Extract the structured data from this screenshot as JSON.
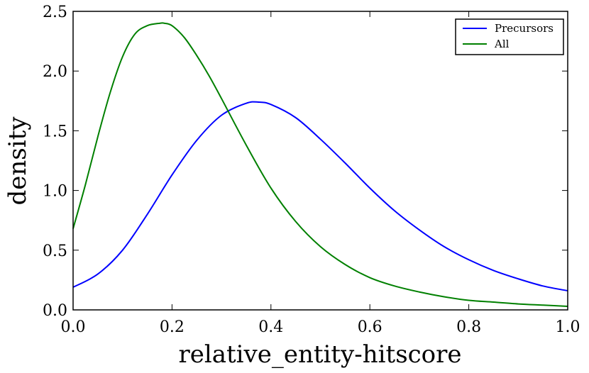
{
  "chart_data": {
    "type": "line",
    "title": "",
    "xlabel": "relative_entity-hitscore",
    "ylabel": "density",
    "xlim": [
      0.0,
      1.0
    ],
    "ylim": [
      0.0,
      2.5
    ],
    "x_ticks": [
      "0.0",
      "0.2",
      "0.4",
      "0.6",
      "0.8",
      "1.0"
    ],
    "y_ticks": [
      "0.0",
      "0.5",
      "1.0",
      "1.5",
      "2.0",
      "2.5"
    ],
    "grid": false,
    "legend_position": "top-right",
    "series": [
      {
        "name": "Precursors",
        "color": "#0000ff",
        "x": [
          0.0,
          0.05,
          0.1,
          0.15,
          0.2,
          0.25,
          0.3,
          0.35,
          0.375,
          0.4,
          0.45,
          0.5,
          0.55,
          0.6,
          0.65,
          0.7,
          0.75,
          0.8,
          0.85,
          0.9,
          0.95,
          1.0
        ],
        "y": [
          0.19,
          0.3,
          0.5,
          0.8,
          1.13,
          1.42,
          1.63,
          1.73,
          1.74,
          1.72,
          1.61,
          1.43,
          1.23,
          1.02,
          0.83,
          0.67,
          0.53,
          0.42,
          0.33,
          0.26,
          0.2,
          0.16
        ]
      },
      {
        "name": "All",
        "color": "#008000",
        "x": [
          0.0,
          0.025,
          0.05,
          0.075,
          0.1,
          0.125,
          0.15,
          0.175,
          0.185,
          0.2,
          0.225,
          0.25,
          0.275,
          0.3,
          0.35,
          0.4,
          0.45,
          0.5,
          0.55,
          0.6,
          0.65,
          0.7,
          0.75,
          0.8,
          0.85,
          0.9,
          0.95,
          1.0
        ],
        "y": [
          0.68,
          1.05,
          1.45,
          1.82,
          2.12,
          2.31,
          2.38,
          2.4,
          2.4,
          2.38,
          2.28,
          2.13,
          1.96,
          1.77,
          1.38,
          1.02,
          0.74,
          0.53,
          0.38,
          0.27,
          0.2,
          0.15,
          0.11,
          0.08,
          0.065,
          0.05,
          0.04,
          0.03
        ]
      }
    ]
  }
}
